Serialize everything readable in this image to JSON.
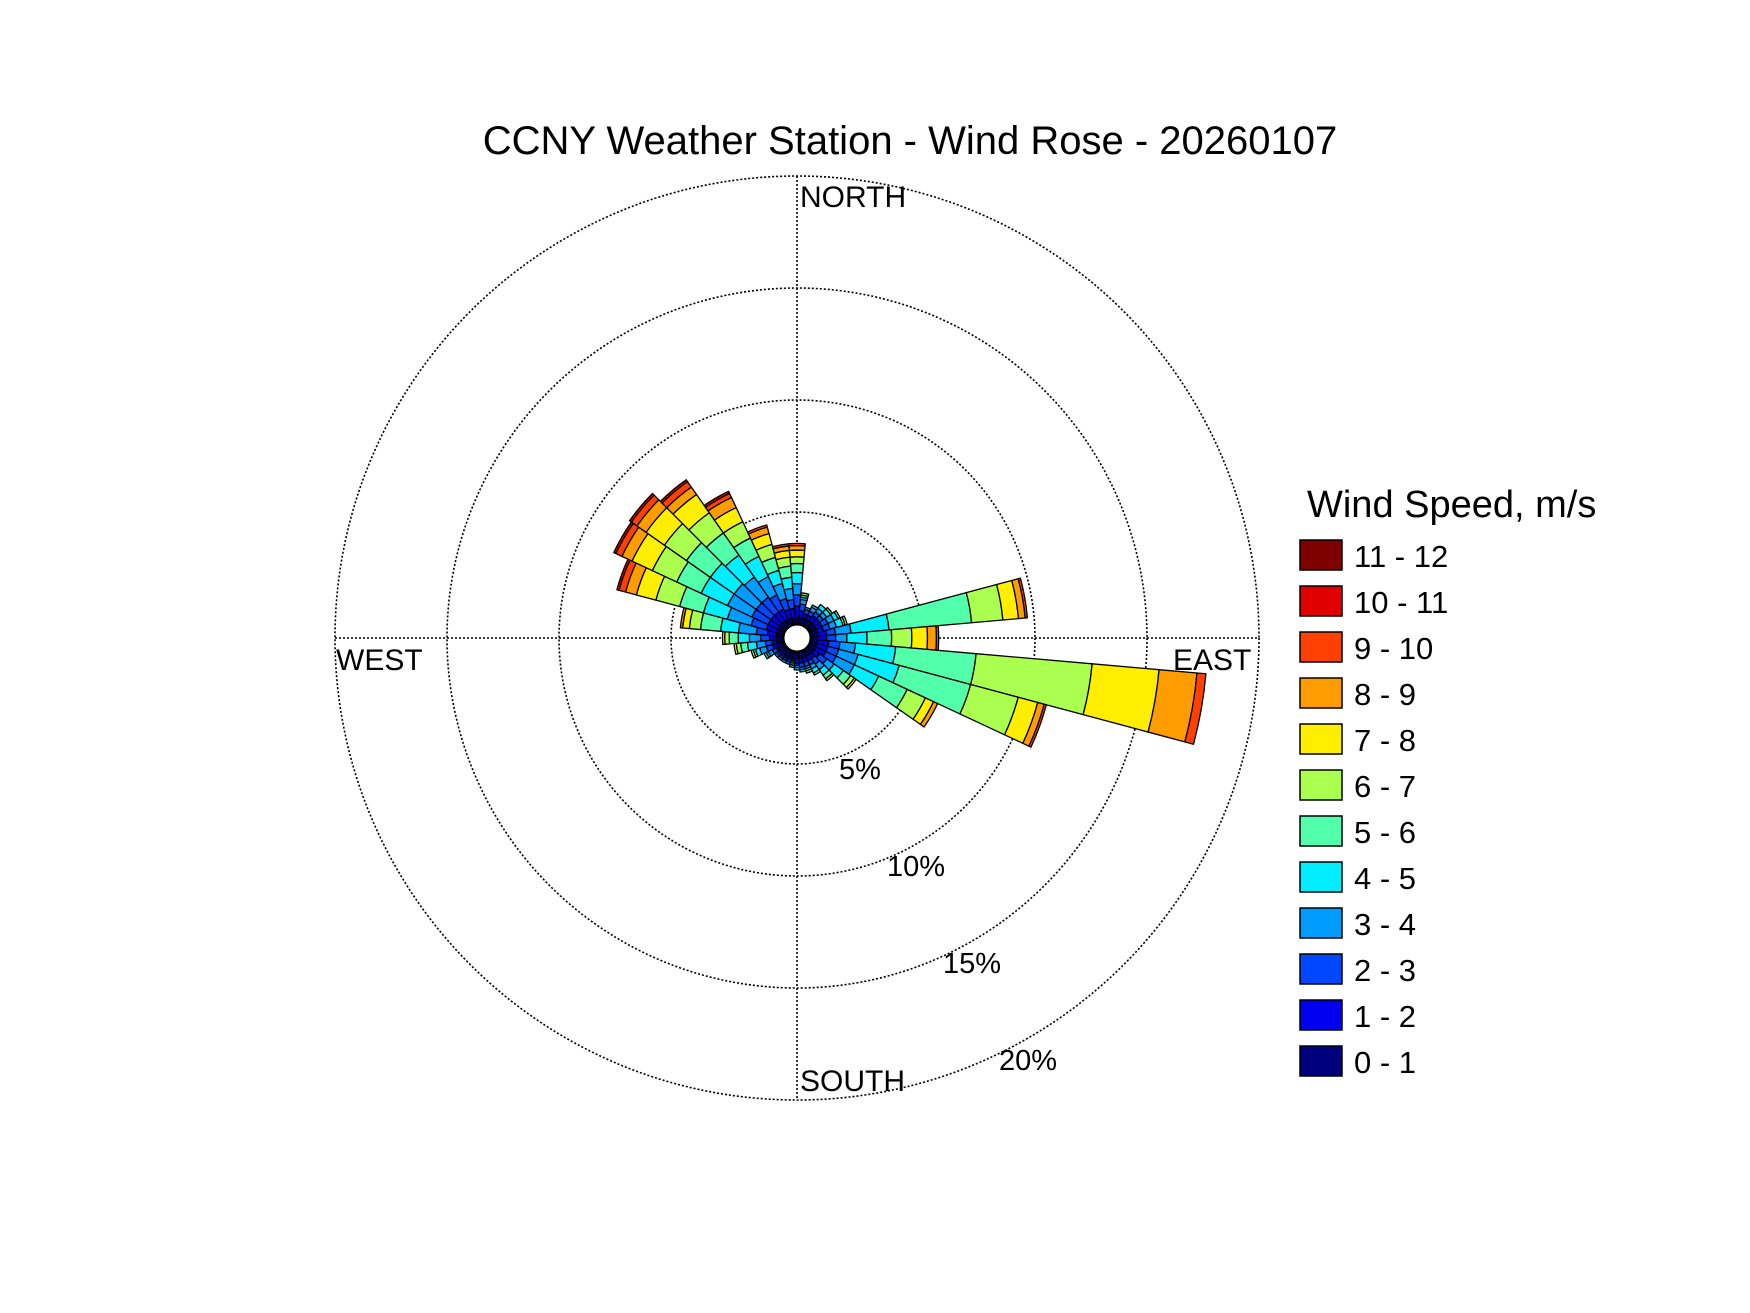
{
  "chart_data": {
    "type": "wind_rose",
    "title": "CCNY Weather Station - Wind Rose - 20260107",
    "direction_labels": {
      "north": "NORTH",
      "south": "SOUTH",
      "east": "EAST",
      "west": "WEST"
    },
    "radial_unit": "%",
    "radial_ticks": [
      5,
      10,
      15,
      20
    ],
    "radial_tick_labels": [
      "5%",
      "10%",
      "15%",
      "20%"
    ],
    "radial_max": 20,
    "radial_axis_angle_deg": 150,
    "legend": {
      "title": "Wind Speed, m/s",
      "position": "right",
      "bins": [
        {
          "label": "11 - 12",
          "color": "#800000"
        },
        {
          "label": "10 - 11",
          "color": "#e00000"
        },
        {
          "label": "9 - 10",
          "color": "#ff4000"
        },
        {
          "label": "8 - 9",
          "color": "#ff9c00"
        },
        {
          "label": "7 - 8",
          "color": "#ffee00"
        },
        {
          "label": "6 - 7",
          "color": "#aaff4f"
        },
        {
          "label": "5 - 6",
          "color": "#52ffab"
        },
        {
          "label": "4 - 5",
          "color": "#00eeff"
        },
        {
          "label": "3 - 4",
          "color": "#009cff"
        },
        {
          "label": "2 - 3",
          "color": "#0048ff"
        },
        {
          "label": "1 - 2",
          "color": "#0000f0"
        },
        {
          "label": "0 - 1",
          "color": "#00007f"
        }
      ]
    },
    "sector_width_deg": 10,
    "sector_angles_deg": [
      0,
      10,
      20,
      30,
      40,
      50,
      60,
      70,
      80,
      90,
      100,
      110,
      120,
      130,
      140,
      150,
      160,
      170,
      180,
      190,
      200,
      210,
      220,
      230,
      240,
      250,
      260,
      270,
      280,
      290,
      300,
      310,
      320,
      330,
      340,
      350
    ],
    "cumulative_percent": [
      [
        0.3,
        0.8,
        1.3,
        1.8,
        2.3,
        2.7,
        3.0,
        3.3,
        3.5,
        3.6,
        3.6,
        3.6
      ],
      [
        0.3,
        0.6,
        0.9,
        1.1,
        1.2,
        1.3,
        1.4,
        1.4,
        1.4,
        1.4,
        1.4,
        1.4
      ],
      [
        0.3,
        0.5,
        0.7,
        0.8,
        0.8,
        0.8,
        0.8,
        0.8,
        0.8,
        0.8,
        0.8,
        0.8
      ],
      [
        0.3,
        0.5,
        0.7,
        0.9,
        1.0,
        1.0,
        1.0,
        1.0,
        1.0,
        1.0,
        1.0,
        1.0
      ],
      [
        0.3,
        0.6,
        0.8,
        1.0,
        1.2,
        1.2,
        1.2,
        1.2,
        1.2,
        1.2,
        1.2,
        1.2
      ],
      [
        0.3,
        0.6,
        0.8,
        1.0,
        1.2,
        1.3,
        1.3,
        1.3,
        1.3,
        1.3,
        1.3,
        1.3
      ],
      [
        0.3,
        0.6,
        0.9,
        1.2,
        1.4,
        1.5,
        1.5,
        1.5,
        1.5,
        1.5,
        1.5,
        1.5
      ],
      [
        0.3,
        0.6,
        0.9,
        1.2,
        1.5,
        1.6,
        1.7,
        1.7,
        1.7,
        1.7,
        1.7,
        1.7
      ],
      [
        0.3,
        0.7,
        1.1,
        1.8,
        3.5,
        7.2,
        8.6,
        9.3,
        9.6,
        9.7,
        9.7,
        9.7
      ],
      [
        0.3,
        0.7,
        1.1,
        1.6,
        2.5,
        3.6,
        4.5,
        5.2,
        5.6,
        5.7,
        5.7,
        5.7
      ],
      [
        0.3,
        0.8,
        1.3,
        2.0,
        3.8,
        7.4,
        12.6,
        15.6,
        17.3,
        17.7,
        17.7,
        17.7
      ],
      [
        0.3,
        0.8,
        1.3,
        2.2,
        4.1,
        7.4,
        9.6,
        10.5,
        10.8,
        10.9,
        10.9,
        10.9
      ],
      [
        0.3,
        0.8,
        1.3,
        2.2,
        3.4,
        4.8,
        5.7,
        6.1,
        6.3,
        6.3,
        6.3,
        6.3
      ],
      [
        0.3,
        0.6,
        1.0,
        1.4,
        1.9,
        2.3,
        2.5,
        2.6,
        2.6,
        2.6,
        2.6,
        2.6
      ],
      [
        0.3,
        0.5,
        0.8,
        1.1,
        1.4,
        1.6,
        1.7,
        1.7,
        1.7,
        1.7,
        1.7,
        1.7
      ],
      [
        0.3,
        0.5,
        0.7,
        0.9,
        1.1,
        1.2,
        1.2,
        1.2,
        1.2,
        1.2,
        1.2,
        1.2
      ],
      [
        0.3,
        0.5,
        0.7,
        0.8,
        0.9,
        1.0,
        1.0,
        1.0,
        1.0,
        1.0,
        1.0,
        1.0
      ],
      [
        0.3,
        0.5,
        0.7,
        0.8,
        0.9,
        0.9,
        0.9,
        0.9,
        0.9,
        0.9,
        0.9,
        0.9
      ],
      [
        0.3,
        0.5,
        0.6,
        0.7,
        0.8,
        0.8,
        0.8,
        0.8,
        0.8,
        0.8,
        0.8,
        0.8
      ],
      [
        0.3,
        0.4,
        0.5,
        0.6,
        0.7,
        0.7,
        0.7,
        0.7,
        0.7,
        0.7,
        0.7,
        0.7
      ],
      [
        0.3,
        0.4,
        0.5,
        0.6,
        0.6,
        0.6,
        0.6,
        0.6,
        0.6,
        0.6,
        0.6,
        0.6
      ],
      [
        0.3,
        0.4,
        0.5,
        0.6,
        0.6,
        0.6,
        0.6,
        0.6,
        0.6,
        0.6,
        0.6,
        0.6
      ],
      [
        0.3,
        0.4,
        0.5,
        0.6,
        0.6,
        0.6,
        0.6,
        0.6,
        0.6,
        0.6,
        0.6,
        0.6
      ],
      [
        0.3,
        0.4,
        0.5,
        0.6,
        0.6,
        0.6,
        0.6,
        0.6,
        0.6,
        0.6,
        0.6,
        0.6
      ],
      [
        0.3,
        0.4,
        0.6,
        0.8,
        0.9,
        1.0,
        1.0,
        1.0,
        1.0,
        1.0,
        1.0,
        1.0
      ],
      [
        0.3,
        0.5,
        0.8,
        1.1,
        1.3,
        1.4,
        1.5,
        1.5,
        1.5,
        1.5,
        1.5,
        1.5
      ],
      [
        0.3,
        0.5,
        0.8,
        1.2,
        1.6,
        1.9,
        2.1,
        2.2,
        2.2,
        2.2,
        2.2,
        2.2
      ],
      [
        0.3,
        0.6,
        1.0,
        1.5,
        2.0,
        2.4,
        2.6,
        2.7,
        2.7,
        2.7,
        2.7,
        2.7
      ],
      [
        0.3,
        0.7,
        1.2,
        2.0,
        2.8,
        3.7,
        4.2,
        4.5,
        4.6,
        4.6,
        4.6,
        4.6
      ],
      [
        0.3,
        0.8,
        1.5,
        2.6,
        3.7,
        4.8,
        5.9,
        6.8,
        7.3,
        7.6,
        7.7,
        7.7
      ],
      [
        0.3,
        0.8,
        1.6,
        2.8,
        4.1,
        5.3,
        6.5,
        7.5,
        8.0,
        8.3,
        8.4,
        8.4
      ],
      [
        0.3,
        0.8,
        1.6,
        2.8,
        4.1,
        5.4,
        6.6,
        7.6,
        8.1,
        8.4,
        8.5,
        8.5
      ],
      [
        0.3,
        0.8,
        1.6,
        2.7,
        3.9,
        5.1,
        6.2,
        7.2,
        7.6,
        7.9,
        8.0,
        8.0
      ],
      [
        0.3,
        0.8,
        1.5,
        2.4,
        3.4,
        4.3,
        5.1,
        5.8,
        6.3,
        6.5,
        6.6,
        6.6
      ],
      [
        0.3,
        0.7,
        1.2,
        1.9,
        2.5,
        3.1,
        3.7,
        4.2,
        4.5,
        4.6,
        4.6,
        4.6
      ],
      [
        0.3,
        0.7,
        1.1,
        1.6,
        2.1,
        2.6,
        3.0,
        3.3,
        3.5,
        3.6,
        3.6,
        3.6
      ]
    ]
  }
}
